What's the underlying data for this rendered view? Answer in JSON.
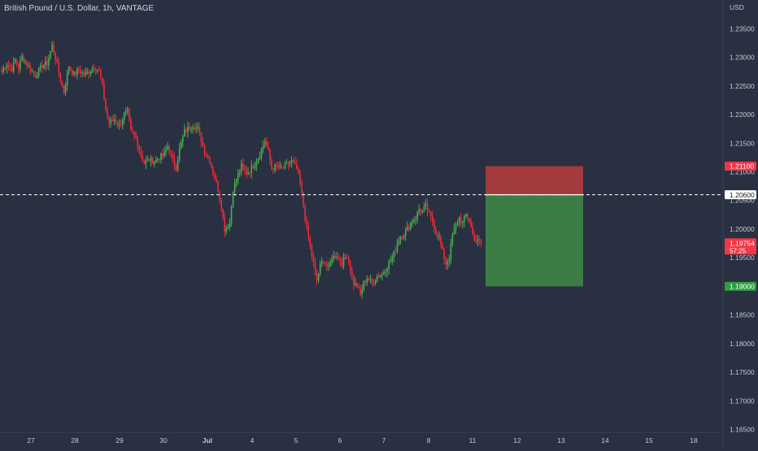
{
  "header": {
    "title": "British Pound / U.S. Dollar, 1h, VANTAGE"
  },
  "colors": {
    "background": "#283041",
    "up_candle": "#4caf50",
    "down_candle": "#ef2b3a",
    "stop_zone": "#a33a3d",
    "target_zone": "#3c7d46",
    "axis_text": "#c5c9d3",
    "entry_label_bg": "#ffffff",
    "target_label_bg": "#2e9e43",
    "stop_label_bg": "#f23645",
    "current_label_bg": "#f23645"
  },
  "chart_data": {
    "type": "candlestick",
    "symbol": "British Pound / U.S. Dollar",
    "interval": "1h",
    "exchange": "VANTAGE",
    "y_axis": {
      "unit": "USD",
      "ticks": [
        "1.16500",
        "1.17000",
        "1.17500",
        "1.18000",
        "1.18500",
        "1.19000",
        "1.19500",
        "1.20000",
        "1.20500",
        "1.21000",
        "1.21500",
        "1.22000",
        "1.22500",
        "1.23000",
        "1.23500"
      ],
      "range": [
        1.16465,
        1.238
      ]
    },
    "x_axis": {
      "ticks": [
        "27",
        "28",
        "29",
        "30",
        "Jul",
        "4",
        "5",
        "6",
        "7",
        "8",
        "11",
        "12",
        "13",
        "14",
        "15",
        "18"
      ],
      "bold_ticks": [
        "Jul"
      ]
    },
    "anchors": [
      [
        0,
        1.2275
      ],
      [
        3,
        1.229
      ],
      [
        6,
        1.228
      ],
      [
        8,
        1.2295
      ],
      [
        10,
        1.2282
      ],
      [
        12,
        1.23
      ],
      [
        15,
        1.2288
      ],
      [
        18,
        1.2275
      ],
      [
        20,
        1.2268
      ],
      [
        24,
        1.2285
      ],
      [
        27,
        1.229
      ],
      [
        29,
        1.231
      ],
      [
        30,
        1.232
      ],
      [
        32,
        1.23
      ],
      [
        35,
        1.226
      ],
      [
        37,
        1.224
      ],
      [
        40,
        1.2285
      ],
      [
        43,
        1.227
      ],
      [
        46,
        1.2278
      ],
      [
        49,
        1.227
      ],
      [
        52,
        1.2275
      ],
      [
        55,
        1.2285
      ],
      [
        58,
        1.2275
      ],
      [
        60,
        1.225
      ],
      [
        62,
        1.221
      ],
      [
        64,
        1.2185
      ],
      [
        67,
        1.2192
      ],
      [
        70,
        1.218
      ],
      [
        73,
        1.22
      ],
      [
        75,
        1.2205
      ],
      [
        77,
        1.217
      ],
      [
        80,
        1.216
      ],
      [
        83,
        1.213
      ],
      [
        85,
        1.2115
      ],
      [
        88,
        1.2122
      ],
      [
        91,
        1.2118
      ],
      [
        94,
        1.2125
      ],
      [
        97,
        1.213
      ],
      [
        99,
        1.2145
      ],
      [
        102,
        1.212
      ],
      [
        104,
        1.2108
      ],
      [
        106,
        1.214
      ],
      [
        109,
        1.217
      ],
      [
        112,
        1.2178
      ],
      [
        114,
        1.2182
      ],
      [
        117,
        1.2175
      ],
      [
        119,
        1.2155
      ],
      [
        121,
        1.2135
      ],
      [
        124,
        1.212
      ],
      [
        126,
        1.21
      ],
      [
        129,
        1.207
      ],
      [
        131,
        1.204
      ],
      [
        133,
        1.2
      ],
      [
        136,
        1.201
      ],
      [
        138,
        1.207
      ],
      [
        141,
        1.2095
      ],
      [
        143,
        1.211
      ],
      [
        146,
        1.2098
      ],
      [
        148,
        1.2102
      ],
      [
        151,
        1.2115
      ],
      [
        153,
        1.2125
      ],
      [
        155,
        1.214
      ],
      [
        157,
        1.2155
      ],
      [
        159,
        1.2135
      ],
      [
        161,
        1.2105
      ],
      [
        164,
        1.211
      ],
      [
        167,
        1.2105
      ],
      [
        170,
        1.2112
      ],
      [
        173,
        1.2118
      ],
      [
        176,
        1.2105
      ],
      [
        178,
        1.208
      ],
      [
        180,
        1.204
      ],
      [
        182,
        1.2
      ],
      [
        184,
        1.197
      ],
      [
        186,
        1.194
      ],
      [
        188,
        1.191
      ],
      [
        190,
        1.1935
      ],
      [
        192,
        1.1945
      ],
      [
        195,
        1.193
      ],
      [
        197,
        1.195
      ],
      [
        200,
        1.1955
      ],
      [
        203,
        1.194
      ],
      [
        206,
        1.1955
      ],
      [
        208,
        1.193
      ],
      [
        210,
        1.1905
      ],
      [
        212,
        1.19
      ],
      [
        214,
        1.1885
      ],
      [
        216,
        1.1905
      ],
      [
        218,
        1.1915
      ],
      [
        221,
        1.1905
      ],
      [
        224,
        1.1918
      ],
      [
        227,
        1.1922
      ],
      [
        230,
        1.1935
      ],
      [
        233,
        1.195
      ],
      [
        235,
        1.1965
      ],
      [
        237,
        1.1985
      ],
      [
        239,
        1.199
      ],
      [
        241,
        1.1995
      ],
      [
        243,
        1.2005
      ],
      [
        245,
        1.2015
      ],
      [
        247,
        1.202
      ],
      [
        249,
        1.2035
      ],
      [
        251,
        1.203
      ],
      [
        253,
        1.204
      ],
      [
        255,
        1.2025
      ],
      [
        257,
        1.2015
      ],
      [
        259,
        1.1995
      ],
      [
        261,
        1.1985
      ],
      [
        263,
        1.196
      ],
      [
        265,
        1.194
      ],
      [
        267,
        1.195
      ],
      [
        269,
        1.199
      ],
      [
        271,
        1.2005
      ],
      [
        273,
        1.202
      ],
      [
        275,
        1.201
      ],
      [
        277,
        1.2025
      ],
      [
        279,
        1.2015
      ],
      [
        281,
        1.199
      ],
      [
        283,
        1.198
      ],
      [
        285,
        1.1978
      ],
      [
        286,
        1.1975
      ]
    ],
    "candle_count": 287,
    "current_price": "1.19754",
    "countdown": "57:25",
    "position": {
      "side": "short",
      "entry_price": "1.20600",
      "stop_price": "1.21100",
      "target_price": "1.19000",
      "entry_value": 1.206,
      "stop_value": 1.211,
      "target_value": 1.19
    },
    "grid": false
  }
}
